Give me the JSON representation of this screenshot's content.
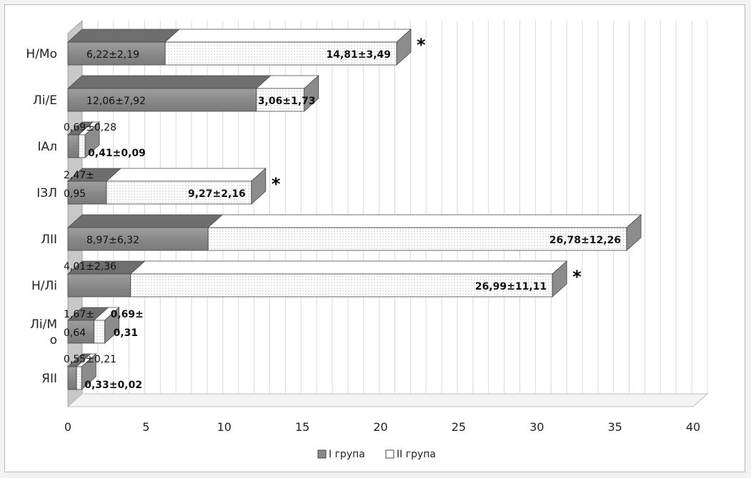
{
  "chart_data": {
    "type": "bar",
    "orientation": "horizontal",
    "stacked": true,
    "three_d": true,
    "categories": [
      "Н/Мо",
      "Лі/Е",
      "ІАл",
      "ІЗЛ",
      "ЛІІ",
      "Н/Лі",
      "Лі/М о",
      "ЯІІ"
    ],
    "category_lines": [
      [
        "Н/Мо"
      ],
      [
        "Лі/Е"
      ],
      [
        "ІАл"
      ],
      [
        "ІЗЛ"
      ],
      [
        "ЛІІ"
      ],
      [
        "Н/Лі"
      ],
      [
        "Лі/М",
        "о"
      ],
      [
        "ЯІІ"
      ]
    ],
    "series": [
      {
        "name": "І група",
        "color": "#8a8a8a",
        "values": [
          6.22,
          12.06,
          0.69,
          2.47,
          8.97,
          4.01,
          1.67,
          0.55
        ],
        "labels": [
          "6,22±2,19",
          "12,06±7,92",
          "0,69±0,28",
          "2,47±0,95",
          "8,97±6,32",
          "4,01±2,36",
          "1,67±0,64",
          "0,55±0,21"
        ],
        "label_lines": [
          [
            "6,22±2,19"
          ],
          [
            "12,06±7,92"
          ],
          [
            "0,69±0,28"
          ],
          [
            "2,47±",
            "0,95"
          ],
          [
            "8,97±6,32"
          ],
          [
            "4,01±2,36"
          ],
          [
            "1,67±",
            "0,64"
          ],
          [
            "0,55±0,21"
          ]
        ]
      },
      {
        "name": "ІІ група",
        "color": "#ffffff",
        "values": [
          14.81,
          3.06,
          0.41,
          9.27,
          26.78,
          26.99,
          0.69,
          0.33
        ],
        "labels": [
          "14,81±3,49",
          "3,06±1,73",
          "0,41±0,09",
          "9,27±2,16",
          "26,78±12,26",
          "26,99±11,11",
          "0,69±0,31",
          "0,33±0,02"
        ],
        "label_lines": [
          [
            "14,81±3,49"
          ],
          [
            "3,06±1,73"
          ],
          [
            "0,41±0,09"
          ],
          [
            "9,27±2,16"
          ],
          [
            "26,78±12,26"
          ],
          [
            "26,99±11,11"
          ],
          [
            "0,69±",
            "0,31"
          ],
          [
            "0,33±0,02"
          ]
        ]
      }
    ],
    "significance": [
      "*",
      "",
      "",
      "*",
      "",
      "*",
      "",
      ""
    ],
    "x_ticks": [
      "0",
      "5",
      "10",
      "15",
      "20",
      "25",
      "30",
      "35",
      "40"
    ],
    "xlim": [
      0,
      40
    ],
    "grid": true,
    "legend_position": "bottom"
  }
}
